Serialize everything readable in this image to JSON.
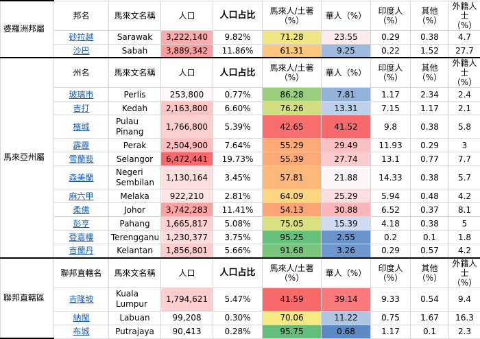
{
  "headers_a": {
    "name": "邦名",
    "malay": "馬來文名稱",
    "pop": "人口",
    "share": "人口占比",
    "malay_pct": "馬來人/土著（%）",
    "chinese": "華人（%）",
    "indian": "印度人（%）",
    "other": "其他（%）",
    "foreign": "外籍人士（%）"
  },
  "headers_b": {
    "name": "州名",
    "malay": "馬來文名稱",
    "pop": "人口",
    "share": "人口占比",
    "malay_pct": "馬來人/土著（%）",
    "chinese": "華人（%）",
    "indian": "印度人（%）",
    "other": "其他（%）",
    "foreign": "外籍人士（%）"
  },
  "headers_c": {
    "name": "聯邦直轄名",
    "malay": "馬來文名稱",
    "pop": "人口",
    "share": "人口占比",
    "malay_pct": "馬來人/土著（%）",
    "chinese": "華人（%）",
    "indian": "印度人（%）",
    "other": "其他（%）",
    "foreign": "外籍人士（%）"
  },
  "regions": {
    "borneo": "婆羅洲邦屬",
    "peninsular": "馬來亞州屬",
    "federal": "聯邦直轄區"
  },
  "borneo_rows": [
    {
      "name": "砂拉越",
      "malay": "Sarawak",
      "pop": "3,222,140",
      "share": "9.82%",
      "malay_pct": "71.28",
      "chinese": "23.55",
      "indian": "0.29",
      "other": "0.38",
      "foreign": "4.7"
    },
    {
      "name": "沙巴",
      "malay": "Sabah",
      "pop": "3,889,342",
      "share": "11.86%",
      "malay_pct": "61.31",
      "chinese": "9.25",
      "indian": "0.22",
      "other": "1.52",
      "foreign": "27.7"
    }
  ],
  "peninsular_rows": [
    {
      "name": "玻璃市",
      "malay": "Perlis",
      "pop": "253,800",
      "share": "0.77%",
      "malay_pct": "86.28",
      "chinese": "7.81",
      "indian": "1.17",
      "other": "2.34",
      "foreign": "2.4"
    },
    {
      "name": "吉打",
      "malay": "Kedah",
      "pop": "2,163,800",
      "share": "6.60%",
      "malay_pct": "76.26",
      "chinese": "13.31",
      "indian": "7.15",
      "other": "1.17",
      "foreign": "2.1"
    },
    {
      "name": "檳城",
      "malay": "Pulau Pinang",
      "pop": "1,766,800",
      "share": "5.39%",
      "malay_pct": "42.65",
      "chinese": "41.52",
      "indian": "9.8",
      "other": "0.38",
      "foreign": "5.8"
    },
    {
      "name": "霹靂",
      "malay": "Perak",
      "pop": "2,504,900",
      "share": "7.64%",
      "malay_pct": "55.29",
      "chinese": "29.49",
      "indian": "11.93",
      "other": "0.29",
      "foreign": "3"
    },
    {
      "name": "雪蘭莪",
      "malay": "Selangor",
      "pop": "6,472,441",
      "share": "19.73%",
      "malay_pct": "55.39",
      "chinese": "27.74",
      "indian": "13.1",
      "other": "0.77",
      "foreign": "7.7"
    },
    {
      "name": "森美蘭",
      "malay": "Negeri Sembilan",
      "pop": "1,130,164",
      "share": "3.45%",
      "malay_pct": "57.81",
      "chinese": "21.88",
      "indian": "14.33",
      "other": "0.38",
      "foreign": "5.7"
    },
    {
      "name": "麻六甲",
      "malay": "Melaka",
      "pop": "922,210",
      "share": "2.81%",
      "malay_pct": "64.09",
      "chinese": "25.29",
      "indian": "5.94",
      "other": "0.48",
      "foreign": "4.2"
    },
    {
      "name": "柔佛",
      "malay": "Johor",
      "pop": "3,742,283",
      "share": "11.41%",
      "malay_pct": "54.13",
      "chinese": "30.88",
      "indian": "6.52",
      "other": "0.37",
      "foreign": "8.1"
    },
    {
      "name": "彭亨",
      "malay": "Pahang",
      "pop": "1,665,817",
      "share": "5.08%",
      "malay_pct": "75.05",
      "chinese": "15.39",
      "indian": "4.18",
      "other": "0.38",
      "foreign": "5"
    },
    {
      "name": "登嘉樓",
      "malay": "Terengganu",
      "pop": "1,230,377",
      "share": "3.75%",
      "malay_pct": "95.25",
      "chinese": "2.55",
      "indian": "0.2",
      "other": "0.1",
      "foreign": "1.8"
    },
    {
      "name": "吉蘭丹",
      "malay": "Kelantan",
      "pop": "1,856,801",
      "share": "5.66%",
      "malay_pct": "91.68",
      "chinese": "3.26",
      "indian": "0.29",
      "other": "0.57",
      "foreign": "4.2"
    }
  ],
  "federal_rows": [
    {
      "name": "吉隆坡",
      "malay": "Kuala Lumpur",
      "pop": "1,794,621",
      "share": "5.47%",
      "malay_pct": "41.59",
      "chinese": "39.14",
      "indian": "9.33",
      "other": "0.54",
      "foreign": "9.4"
    },
    {
      "name": "納閩",
      "malay": "Labuan",
      "pop": "99,208",
      "share": "0.30%",
      "malay_pct": "70.06",
      "chinese": "11.22",
      "indian": "0.75",
      "other": "1.67",
      "foreign": "16.3"
    },
    {
      "name": "布城",
      "malay": "Putrajaya",
      "pop": "90,413",
      "share": "0.28%",
      "malay_pct": "95.75",
      "chinese": "0.68",
      "indian": "1.17",
      "other": "0.1",
      "foreign": "2.3"
    }
  ],
  "colors": {
    "pop_scale": [
      "#ffffff",
      "#f8696b"
    ],
    "malay_scale_low": "#f8696b",
    "malay_scale_mid": "#ffeb84",
    "malay_scale_high": "#63be7b",
    "chinese_scale_low": "#5a8ac6",
    "chinese_scale_mid": "#fcfcff",
    "chinese_scale_high": "#f8696b"
  }
}
